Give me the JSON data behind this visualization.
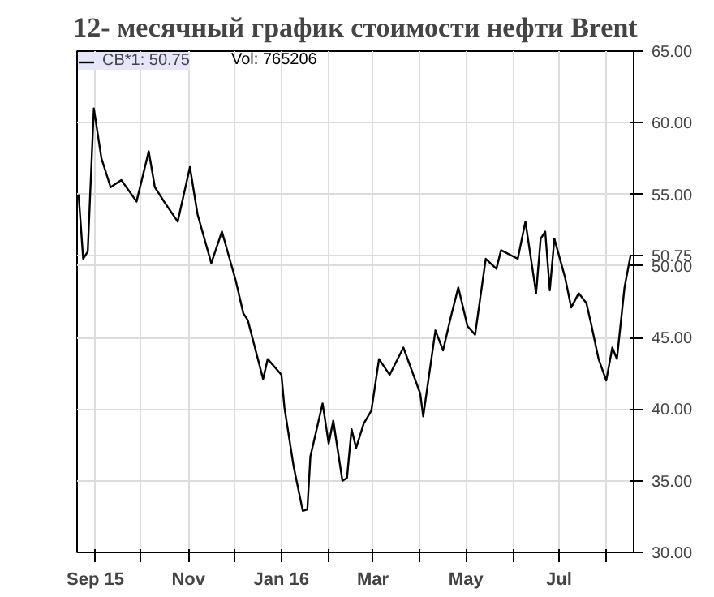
{
  "chart_data": {
    "type": "line",
    "title": "12- месячный график стоимости нефти Brent",
    "x": [
      "2015-08-21",
      "2015-08-24",
      "2015-08-27",
      "2015-08-31",
      "2015-09-05",
      "2015-09-11",
      "2015-09-18",
      "2015-09-28",
      "2015-10-06",
      "2015-10-10",
      "2015-10-16",
      "2015-10-25",
      "2015-11-02",
      "2015-11-07",
      "2015-11-16",
      "2015-11-23",
      "2015-12-02",
      "2015-12-07",
      "2015-12-10",
      "2015-12-20",
      "2015-12-23",
      "2016-01-01",
      "2016-01-03",
      "2016-01-09",
      "2016-01-15",
      "2016-01-18",
      "2016-01-20",
      "2016-01-28",
      "2016-02-01",
      "2016-02-04",
      "2016-02-10",
      "2016-02-13",
      "2016-02-16",
      "2016-02-19",
      "2016-02-24",
      "2016-02-29",
      "2016-03-05",
      "2016-03-12",
      "2016-03-21",
      "2016-04-01",
      "2016-04-03",
      "2016-04-11",
      "2016-04-16",
      "2016-04-21",
      "2016-04-26",
      "2016-05-02",
      "2016-05-07",
      "2016-05-14",
      "2016-05-21",
      "2016-05-24",
      "2016-06-04",
      "2016-06-09",
      "2016-06-16",
      "2016-06-19",
      "2016-06-22",
      "2016-06-25",
      "2016-06-28",
      "2016-07-05",
      "2016-07-09",
      "2016-07-14",
      "2016-07-19",
      "2016-07-22",
      "2016-07-27",
      "2016-08-01",
      "2016-08-05",
      "2016-08-08",
      "2016-08-13",
      "2016-08-17"
    ],
    "series": [
      {
        "name": "CB*1: 50.75",
        "color": "#000000",
        "values": [
          55.0,
          50.5,
          51.0,
          61.0,
          57.5,
          55.5,
          56.0,
          54.5,
          58.0,
          55.5,
          54.5,
          53.1,
          56.9,
          53.6,
          50.2,
          52.4,
          49.0,
          46.7,
          46.2,
          42.1,
          43.5,
          42.4,
          40.1,
          36.0,
          32.9,
          33.0,
          36.7,
          40.4,
          37.6,
          39.2,
          35.0,
          35.2,
          38.6,
          37.3,
          39.0,
          39.9,
          43.5,
          42.4,
          44.3,
          41.1,
          39.5,
          45.5,
          44.1,
          46.4,
          48.5,
          45.8,
          45.2,
          50.5,
          49.8,
          51.1,
          50.5,
          53.1,
          48.1,
          51.9,
          52.4,
          48.3,
          51.9,
          49.2,
          47.1,
          48.1,
          47.4,
          46.0,
          43.5,
          42.0,
          44.3,
          43.5,
          48.5,
          50.75
        ]
      }
    ],
    "xlim": [
      "2015-08-20",
      "2016-08-19"
    ],
    "xticks": [
      {
        "value": "2015-09-01",
        "label": "Sep 15"
      },
      {
        "value": "2015-10-01",
        "label": null
      },
      {
        "value": "2015-11-01",
        "label": "Nov"
      },
      {
        "value": "2015-12-01",
        "label": null
      },
      {
        "value": "2016-01-01",
        "label": "Jan 16"
      },
      {
        "value": "2016-02-01",
        "label": null
      },
      {
        "value": "2016-03-01",
        "label": "Mar"
      },
      {
        "value": "2016-04-01",
        "label": null
      },
      {
        "value": "2016-05-01",
        "label": "May"
      },
      {
        "value": "2016-06-01",
        "label": null
      },
      {
        "value": "2016-07-01",
        "label": "Jul"
      },
      {
        "value": "2016-08-01",
        "label": null
      }
    ],
    "ylim": [
      30,
      65
    ],
    "yticks": [
      {
        "value": 30,
        "label": "30.00"
      },
      {
        "value": 35,
        "label": "35.00"
      },
      {
        "value": 40,
        "label": "40.00"
      },
      {
        "value": 45,
        "label": "45.00"
      },
      {
        "value": 50,
        "label": "50.00"
      },
      50.75,
      {
        "value": 55,
        "label": "55.00"
      },
      {
        "value": 60,
        "label": "60.00"
      },
      {
        "value": 65,
        "label": "65.00"
      }
    ],
    "annotations": [
      "Vol: 765206"
    ],
    "grid": true,
    "legend": "top left",
    "line_style": "solid",
    "marker": "none"
  }
}
